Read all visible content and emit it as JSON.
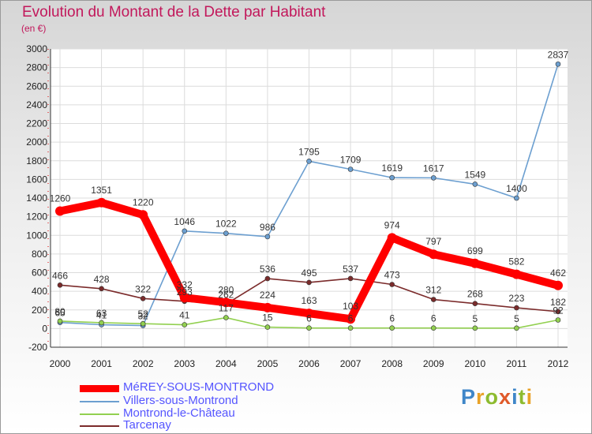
{
  "title": "Evolution du Montant de la Dette par Habitant",
  "subtitle": "(en €)",
  "logo": {
    "text": "Proxiti",
    "letter_colors": [
      "#3f86c8",
      "#e9a228",
      "#8dbb2f",
      "#e05a2a",
      "#3f86c8",
      "#8dbb2f",
      "#e9a228"
    ]
  },
  "chart_data": {
    "type": "line",
    "x": [
      "2000",
      "2001",
      "2002",
      "2003",
      "2004",
      "2005",
      "2006",
      "2007",
      "2008",
      "2009",
      "2010",
      "2011",
      "2012"
    ],
    "ylim": [
      -200,
      3000
    ],
    "yticks": [
      "-200",
      "0",
      "200",
      "400",
      "600",
      "800",
      "1000",
      "1200",
      "1400",
      "1600",
      "1800",
      "2000",
      "2200",
      "2400",
      "2600",
      "2800",
      "3000"
    ],
    "grid": true,
    "legend_position": "bottom-left",
    "series": [
      {
        "name": "Villers-sous-Montrond",
        "color": "#6c9fd0",
        "values": [
          65,
          41,
          32,
          1046,
          1022,
          986,
          1795,
          1709,
          1619,
          1617,
          1549,
          1400,
          2837
        ],
        "labels": [
          "65",
          "41",
          "32",
          "1046",
          "1022",
          "986",
          "1795",
          "1709",
          "1619",
          "1617",
          "1549",
          "1400",
          "2837"
        ]
      },
      {
        "name": "Montrond-le-Château",
        "color": "#92d050",
        "values": [
          80,
          63,
          52,
          41,
          117,
          15,
          6,
          6,
          6,
          6,
          5,
          5,
          92
        ],
        "labels": [
          "80",
          "63",
          "52",
          "41",
          "117",
          "15",
          "6",
          "6",
          "6",
          "6",
          "5",
          "5",
          "92"
        ]
      },
      {
        "name": "Tarcenay",
        "color": "#7b2b2b",
        "values": [
          466,
          428,
          322,
          293,
          262,
          536,
          495,
          537,
          473,
          312,
          268,
          223,
          182
        ],
        "labels": [
          "466",
          "428",
          "322",
          "293",
          "262",
          "536",
          "495",
          "537",
          "473",
          "312",
          "268",
          "223",
          "182"
        ]
      },
      {
        "name": "MéREY-SOUS-MONTROND",
        "color": "#ff0000",
        "values": [
          1260,
          1351,
          1220,
          332,
          280,
          224,
          163,
          103,
          974,
          797,
          699,
          582,
          462
        ],
        "labels": [
          "1260",
          "1351",
          "1220",
          "332",
          "280",
          "224",
          "163",
          "103",
          "974",
          "797",
          "699",
          "582",
          "462"
        ]
      }
    ]
  },
  "legend": {
    "items": [
      {
        "label": "MéREY-SOUS-MONTROND",
        "color": "#ff0000"
      },
      {
        "label": "Villers-sous-Montrond",
        "color": "#6c9fd0"
      },
      {
        "label": "Montrond-le-Château",
        "color": "#92d050"
      },
      {
        "label": "Tarcenay",
        "color": "#7b2b2b"
      }
    ]
  }
}
